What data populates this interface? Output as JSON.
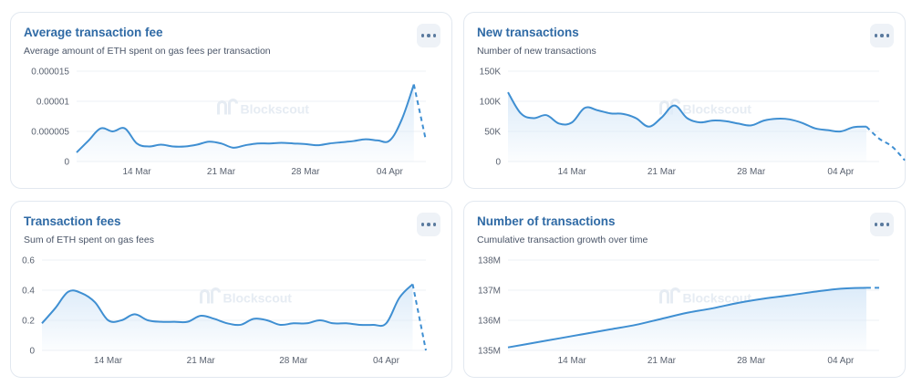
{
  "watermark": "Blockscout",
  "colors": {
    "line": "#3f8fd2",
    "fill": "#dcebf9",
    "grid": "#edf0f4",
    "title": "#2f6aa5"
  },
  "cards": [
    {
      "title": "Average transaction fee",
      "subtitle": "Average amount of ETH spent on gas fees per transaction",
      "menu_icon": "more-horizontal-icon"
    },
    {
      "title": "New transactions",
      "subtitle": "Number of new transactions",
      "menu_icon": "more-horizontal-icon"
    },
    {
      "title": "Transaction fees",
      "subtitle": "Sum of ETH spent on gas fees",
      "menu_icon": "more-horizontal-icon"
    },
    {
      "title": "Number of transactions",
      "subtitle": "Cumulative transaction growth over time",
      "menu_icon": "more-horizontal-icon"
    }
  ],
  "chart_data": [
    {
      "type": "area",
      "title": "Average transaction fee",
      "ylim": [
        0,
        1.5e-05
      ],
      "yticks": [
        0,
        5e-06,
        1e-05,
        1.5e-05
      ],
      "ytick_labels": [
        "0",
        "0.000005",
        "0.00001",
        "0.000015"
      ],
      "xlim": [
        0,
        28
      ],
      "xticks": [
        5,
        12,
        19,
        26
      ],
      "xtick_labels": [
        "14 Mar",
        "21 Mar",
        "28 Mar",
        "04 Apr"
      ],
      "grid": true,
      "x": [
        0,
        1,
        2,
        3,
        4,
        5,
        6,
        7,
        8,
        9,
        10,
        11,
        12,
        13,
        14,
        15,
        16,
        17,
        18,
        19,
        20,
        21,
        22,
        23,
        24,
        25,
        26,
        27,
        28
      ],
      "values": [
        1.5e-06,
        3.5e-06,
        5.5e-06,
        5e-06,
        5.5e-06,
        3e-06,
        2.5e-06,
        2.8e-06,
        2.5e-06,
        2.5e-06,
        2.8e-06,
        3.3e-06,
        3e-06,
        2.3e-06,
        2.7e-06,
        3e-06,
        3e-06,
        3.1e-06,
        3e-06,
        2.9e-06,
        2.7e-06,
        3e-06,
        3.2e-06,
        3.4e-06,
        3.7e-06,
        3.5e-06,
        3.5e-06,
        7e-06,
        1.28e-05
      ],
      "partial": {
        "x": [
          28,
          29
        ],
        "values": [
          1.28e-05,
          3.5e-06
        ]
      }
    },
    {
      "type": "area",
      "title": "New transactions",
      "ylim": [
        0,
        150000
      ],
      "yticks": [
        0,
        50000,
        100000,
        150000
      ],
      "ytick_labels": [
        "0",
        "50K",
        "100K",
        "150K"
      ],
      "xlim": [
        0,
        28
      ],
      "xticks": [
        5,
        12,
        19,
        26
      ],
      "xtick_labels": [
        "14 Mar",
        "21 Mar",
        "28 Mar",
        "04 Apr"
      ],
      "grid": true,
      "x": [
        0,
        1,
        2,
        3,
        4,
        5,
        6,
        7,
        8,
        9,
        10,
        11,
        12,
        13,
        14,
        15,
        16,
        17,
        18,
        19,
        20,
        21,
        22,
        23,
        24,
        25,
        26,
        27,
        28
      ],
      "values": [
        115000,
        80000,
        72000,
        77000,
        63000,
        65000,
        89000,
        85000,
        80000,
        79000,
        72000,
        58000,
        73000,
        93000,
        72000,
        65000,
        68000,
        67000,
        63000,
        60000,
        68000,
        71000,
        70000,
        64000,
        55000,
        52000,
        50000,
        57000,
        58000
      ],
      "partial": {
        "x": [
          28,
          29,
          30,
          31
        ],
        "values": [
          58000,
          38000,
          25000,
          2000
        ]
      }
    },
    {
      "type": "area",
      "title": "Transaction fees",
      "ylim": [
        0,
        0.6
      ],
      "yticks": [
        0,
        0.2,
        0.4,
        0.6
      ],
      "ytick_labels": [
        "0",
        "0.2",
        "0.4",
        "0.6"
      ],
      "xlim": [
        0,
        28
      ],
      "xticks": [
        5,
        12,
        19,
        26
      ],
      "xtick_labels": [
        "14 Mar",
        "21 Mar",
        "28 Mar",
        "04 Apr"
      ],
      "grid": true,
      "x": [
        0,
        1,
        2,
        3,
        4,
        5,
        6,
        7,
        8,
        9,
        10,
        11,
        12,
        13,
        14,
        15,
        16,
        17,
        18,
        19,
        20,
        21,
        22,
        23,
        24,
        25,
        26,
        27,
        28
      ],
      "values": [
        0.18,
        0.28,
        0.39,
        0.38,
        0.32,
        0.2,
        0.2,
        0.24,
        0.2,
        0.19,
        0.19,
        0.19,
        0.23,
        0.21,
        0.18,
        0.17,
        0.21,
        0.2,
        0.17,
        0.18,
        0.18,
        0.2,
        0.18,
        0.18,
        0.17,
        0.17,
        0.18,
        0.35,
        0.44
      ],
      "partial": {
        "x": [
          28,
          29
        ],
        "values": [
          0.44,
          0.0
        ]
      }
    },
    {
      "type": "area",
      "title": "Number of transactions",
      "ylim": [
        135000000,
        138000000
      ],
      "yticks": [
        135000000,
        136000000,
        137000000,
        138000000
      ],
      "ytick_labels": [
        "135M",
        "136M",
        "137M",
        "138M"
      ],
      "xlim": [
        0,
        28
      ],
      "xticks": [
        5,
        12,
        19,
        26
      ],
      "xtick_labels": [
        "14 Mar",
        "21 Mar",
        "28 Mar",
        "04 Apr"
      ],
      "grid": true,
      "x": [
        0,
        2,
        4,
        6,
        8,
        10,
        12,
        14,
        16,
        18,
        20,
        22,
        24,
        26,
        28
      ],
      "values": [
        135100000,
        135250000,
        135400000,
        135550000,
        135700000,
        135850000,
        136050000,
        136250000,
        136400000,
        136580000,
        136720000,
        136830000,
        136950000,
        137050000,
        137080000
      ],
      "partial": {
        "x": [
          28,
          29
        ],
        "values": [
          137080000,
          137080000
        ]
      }
    }
  ]
}
